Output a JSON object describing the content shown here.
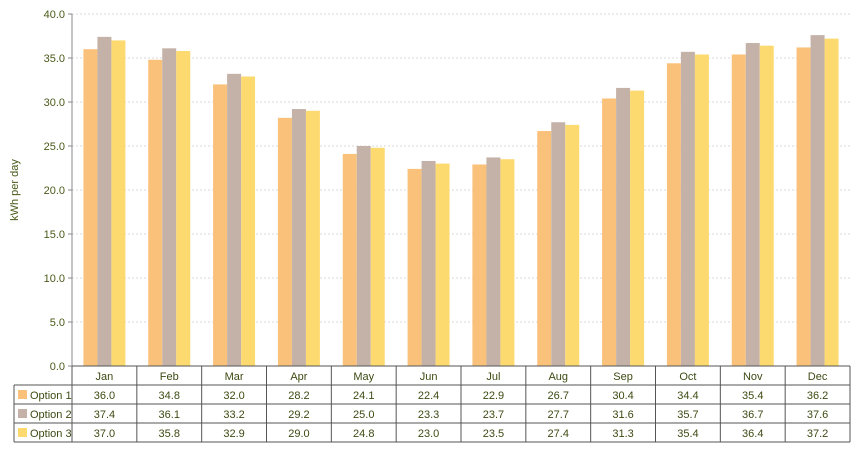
{
  "chart_data": {
    "type": "bar",
    "ylabel": "kWh per day",
    "ylim": [
      0,
      40
    ],
    "ytick_step": 5,
    "y_tick_labels": [
      "0.0",
      "5.0",
      "10.0",
      "15.0",
      "20.0",
      "25.0",
      "30.0",
      "35.0",
      "40.0"
    ],
    "categories": [
      "Jan",
      "Feb",
      "Mar",
      "Apr",
      "May",
      "Jun",
      "Jul",
      "Aug",
      "Sep",
      "Oct",
      "Nov",
      "Dec"
    ],
    "grid": "horizontal-dashed",
    "legend": "data-table-below",
    "series": [
      {
        "name": "Option 1",
        "color": "#FAC17A",
        "values": [
          36.0,
          34.8,
          32.0,
          28.2,
          24.1,
          22.4,
          22.9,
          26.7,
          30.4,
          34.4,
          35.4,
          36.2
        ]
      },
      {
        "name": "Option 2",
        "color": "#C4B2A8",
        "values": [
          37.4,
          36.1,
          33.2,
          29.2,
          25.0,
          23.3,
          23.7,
          27.7,
          31.6,
          35.7,
          36.7,
          37.6
        ]
      },
      {
        "name": "Option 3",
        "color": "#FDDA70",
        "values": [
          37.0,
          35.8,
          32.9,
          29.0,
          24.8,
          23.0,
          23.5,
          27.4,
          31.3,
          35.4,
          36.4,
          37.2
        ]
      }
    ]
  }
}
